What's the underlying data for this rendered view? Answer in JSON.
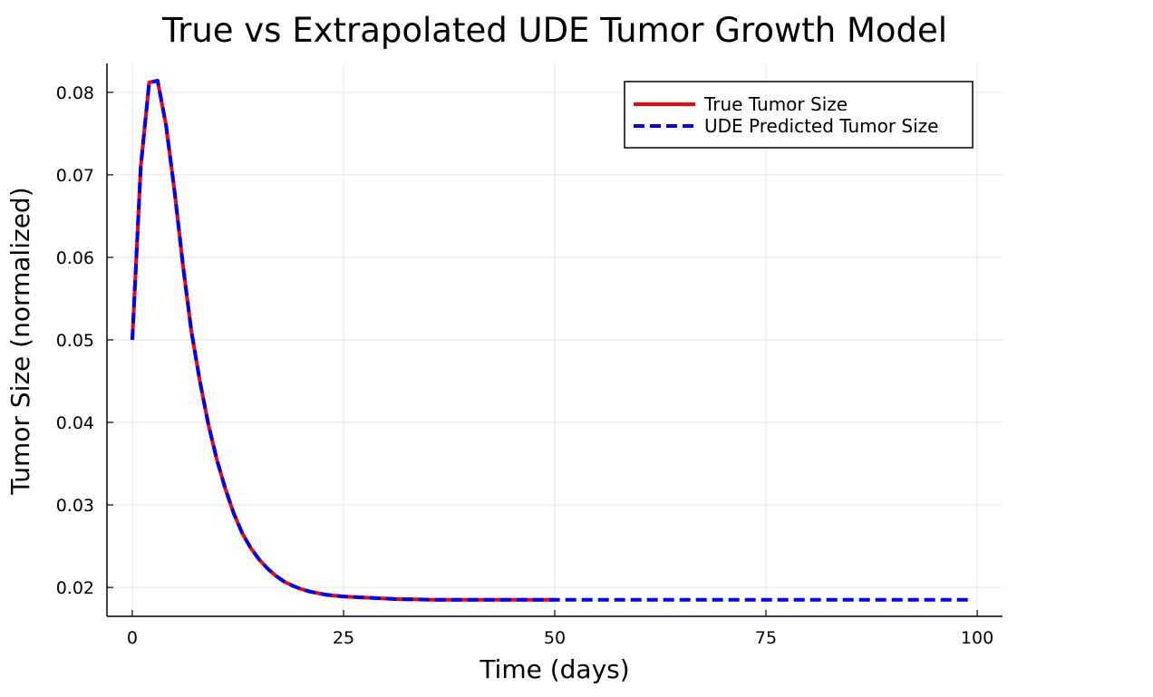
{
  "chart_data": {
    "type": "line",
    "title": "True vs Extrapolated UDE Tumor Growth Model",
    "xlabel": "Time (days)",
    "ylabel": "Tumor Size (normalized)",
    "xlim": [
      -3,
      103
    ],
    "ylim": [
      0.0165,
      0.0835
    ],
    "x_ticks": [
      0,
      25,
      50,
      75,
      100
    ],
    "x_tick_labels": [
      "0",
      "25",
      "50",
      "75",
      "100"
    ],
    "y_ticks": [
      0.02,
      0.03,
      0.04,
      0.05,
      0.06,
      0.07,
      0.08
    ],
    "y_tick_labels": [
      "0.02",
      "0.03",
      "0.04",
      "0.05",
      "0.06",
      "0.07",
      "0.08"
    ],
    "grid": true,
    "legend_position": "top-right",
    "series": [
      {
        "name": "True Tumor Size",
        "color": "#ff0000",
        "style": "solid",
        "x": [
          0,
          1,
          2,
          3,
          4,
          5,
          6,
          7,
          8,
          9,
          10,
          11,
          12,
          13,
          14,
          15,
          16,
          17,
          18,
          19,
          20,
          21,
          22,
          23,
          24,
          25,
          26,
          27,
          28,
          29,
          30,
          31,
          32,
          33,
          34,
          35,
          36,
          37,
          38,
          39,
          40,
          41,
          42,
          43,
          44,
          45,
          46,
          47,
          48,
          49,
          50
        ],
        "y": [
          0.05,
          0.071,
          0.0812,
          0.0814,
          0.076,
          0.068,
          0.059,
          0.051,
          0.045,
          0.0398,
          0.0355,
          0.032,
          0.029,
          0.0266,
          0.0248,
          0.0234,
          0.0223,
          0.0214,
          0.0207,
          0.0202,
          0.0198,
          0.0195,
          0.0193,
          0.0191,
          0.019,
          0.0189,
          0.01885,
          0.0188,
          0.01875,
          0.0187,
          0.01865,
          0.0186,
          0.01858,
          0.01856,
          0.01854,
          0.01852,
          0.0185,
          0.0185,
          0.0185,
          0.0185,
          0.0185,
          0.0185,
          0.0185,
          0.0185,
          0.0185,
          0.0185,
          0.0185,
          0.0185,
          0.0185,
          0.0185,
          0.0185
        ]
      },
      {
        "name": "UDE Predicted Tumor Size",
        "color": "#0000ff",
        "style": "dashed",
        "x": [
          0,
          1,
          2,
          3,
          4,
          5,
          6,
          7,
          8,
          9,
          10,
          11,
          12,
          13,
          14,
          15,
          16,
          17,
          18,
          19,
          20,
          21,
          22,
          23,
          24,
          25,
          26,
          27,
          28,
          29,
          30,
          31,
          32,
          33,
          34,
          35,
          36,
          37,
          38,
          39,
          40,
          41,
          42,
          43,
          44,
          45,
          46,
          47,
          48,
          49,
          50,
          55,
          60,
          65,
          70,
          75,
          80,
          85,
          90,
          95,
          99
        ],
        "y": [
          0.05,
          0.071,
          0.0812,
          0.0814,
          0.076,
          0.068,
          0.059,
          0.051,
          0.045,
          0.0398,
          0.0355,
          0.032,
          0.029,
          0.0266,
          0.0248,
          0.0234,
          0.0223,
          0.0214,
          0.0207,
          0.0202,
          0.0198,
          0.0195,
          0.0193,
          0.0191,
          0.019,
          0.0189,
          0.01885,
          0.0188,
          0.01875,
          0.0187,
          0.01865,
          0.0186,
          0.01858,
          0.01856,
          0.01854,
          0.01852,
          0.0185,
          0.0185,
          0.0185,
          0.0185,
          0.0185,
          0.0185,
          0.0185,
          0.0185,
          0.0185,
          0.0185,
          0.0185,
          0.0185,
          0.0185,
          0.0185,
          0.0185,
          0.0185,
          0.0185,
          0.0185,
          0.0185,
          0.0185,
          0.0185,
          0.0185,
          0.0185,
          0.0185,
          0.0185
        ]
      }
    ]
  }
}
